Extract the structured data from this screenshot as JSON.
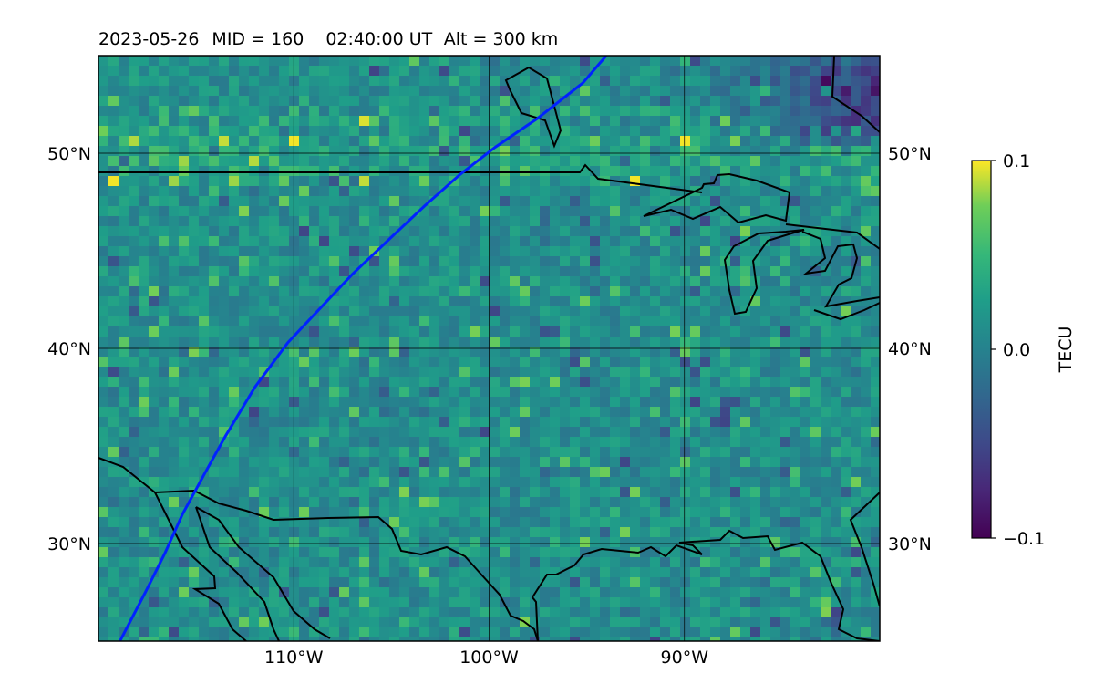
{
  "header": {
    "date": "2023-05-26",
    "mid": "MID = 160",
    "time": "02:40:00  UT",
    "altitude": "Alt = 300 km"
  },
  "map": {
    "lat_range": [
      25,
      55
    ],
    "lon_range": [
      -120,
      -80
    ],
    "lat_ticks": [
      {
        "value": 50,
        "label": "50°N"
      },
      {
        "value": 40,
        "label": "40°N"
      },
      {
        "value": 30,
        "label": "30°N"
      }
    ],
    "lon_ticks": [
      {
        "value": -110,
        "label": "110°W"
      },
      {
        "value": -100,
        "label": "100°W"
      },
      {
        "value": -90,
        "label": "90°W"
      }
    ],
    "gridlines": true,
    "track_color": "#0022ff",
    "track": [
      [
        -118.9,
        25
      ],
      [
        -117.6,
        27.5
      ],
      [
        -116.6,
        29.5
      ],
      [
        -115.7,
        31.5
      ],
      [
        -114.5,
        33.7
      ],
      [
        -113.5,
        35.5
      ],
      [
        -112,
        38
      ],
      [
        -110.3,
        40.3
      ],
      [
        -108.7,
        42
      ],
      [
        -107,
        43.8
      ],
      [
        -105,
        45.7
      ],
      [
        -103.3,
        47.3
      ],
      [
        -101.5,
        48.9
      ],
      [
        -99.7,
        50.3
      ],
      [
        -97.5,
        51.8
      ],
      [
        -95.2,
        53.6
      ],
      [
        -94,
        55
      ]
    ],
    "coastline_color": "#000000"
  },
  "colorbar": {
    "label": "TECU",
    "min": -0.1,
    "max": 0.1,
    "ticks": [
      {
        "value": 0.1,
        "label": "0.1"
      },
      {
        "value": 0.0,
        "label": "0.0"
      },
      {
        "value": -0.1,
        "label": "−0.1"
      }
    ],
    "colormap": "viridis"
  }
}
